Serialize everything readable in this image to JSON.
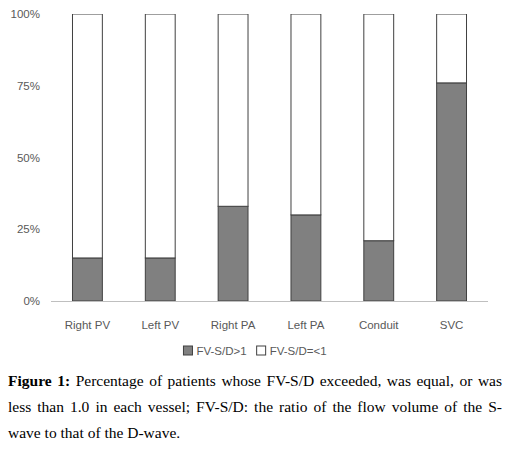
{
  "chart_data": {
    "type": "bar",
    "stacked": true,
    "title": "Figure 1:",
    "subtitle": "Percentage of patients whose FV-S/D exceeded, was equal, or was less than 1.0 in each vessel; FV-S/D: the ratio of the flow volume of the S-wave to that of the D-wave.",
    "categories": [
      "Right PV",
      "Left PV",
      "Right PA",
      "Left PA",
      "Conduit",
      "SVC"
    ],
    "series": [
      {
        "name": "FV-S/D>1",
        "color": "#808080",
        "values": [
          15,
          15,
          33,
          30,
          21,
          76
        ]
      },
      {
        "name": "FV-S/D=<1",
        "color": "#ffffff",
        "values": [
          85,
          85,
          67,
          70,
          79,
          24
        ]
      }
    ],
    "ylim": [
      0,
      100
    ],
    "yticks": [
      {
        "value": 0,
        "label": "0%"
      },
      {
        "value": 25,
        "label": "25%"
      },
      {
        "value": 50,
        "label": "50%"
      },
      {
        "value": 75,
        "label": "75%"
      },
      {
        "value": 100,
        "label": "100%"
      }
    ],
    "grid": false,
    "legend": "bottom"
  }
}
